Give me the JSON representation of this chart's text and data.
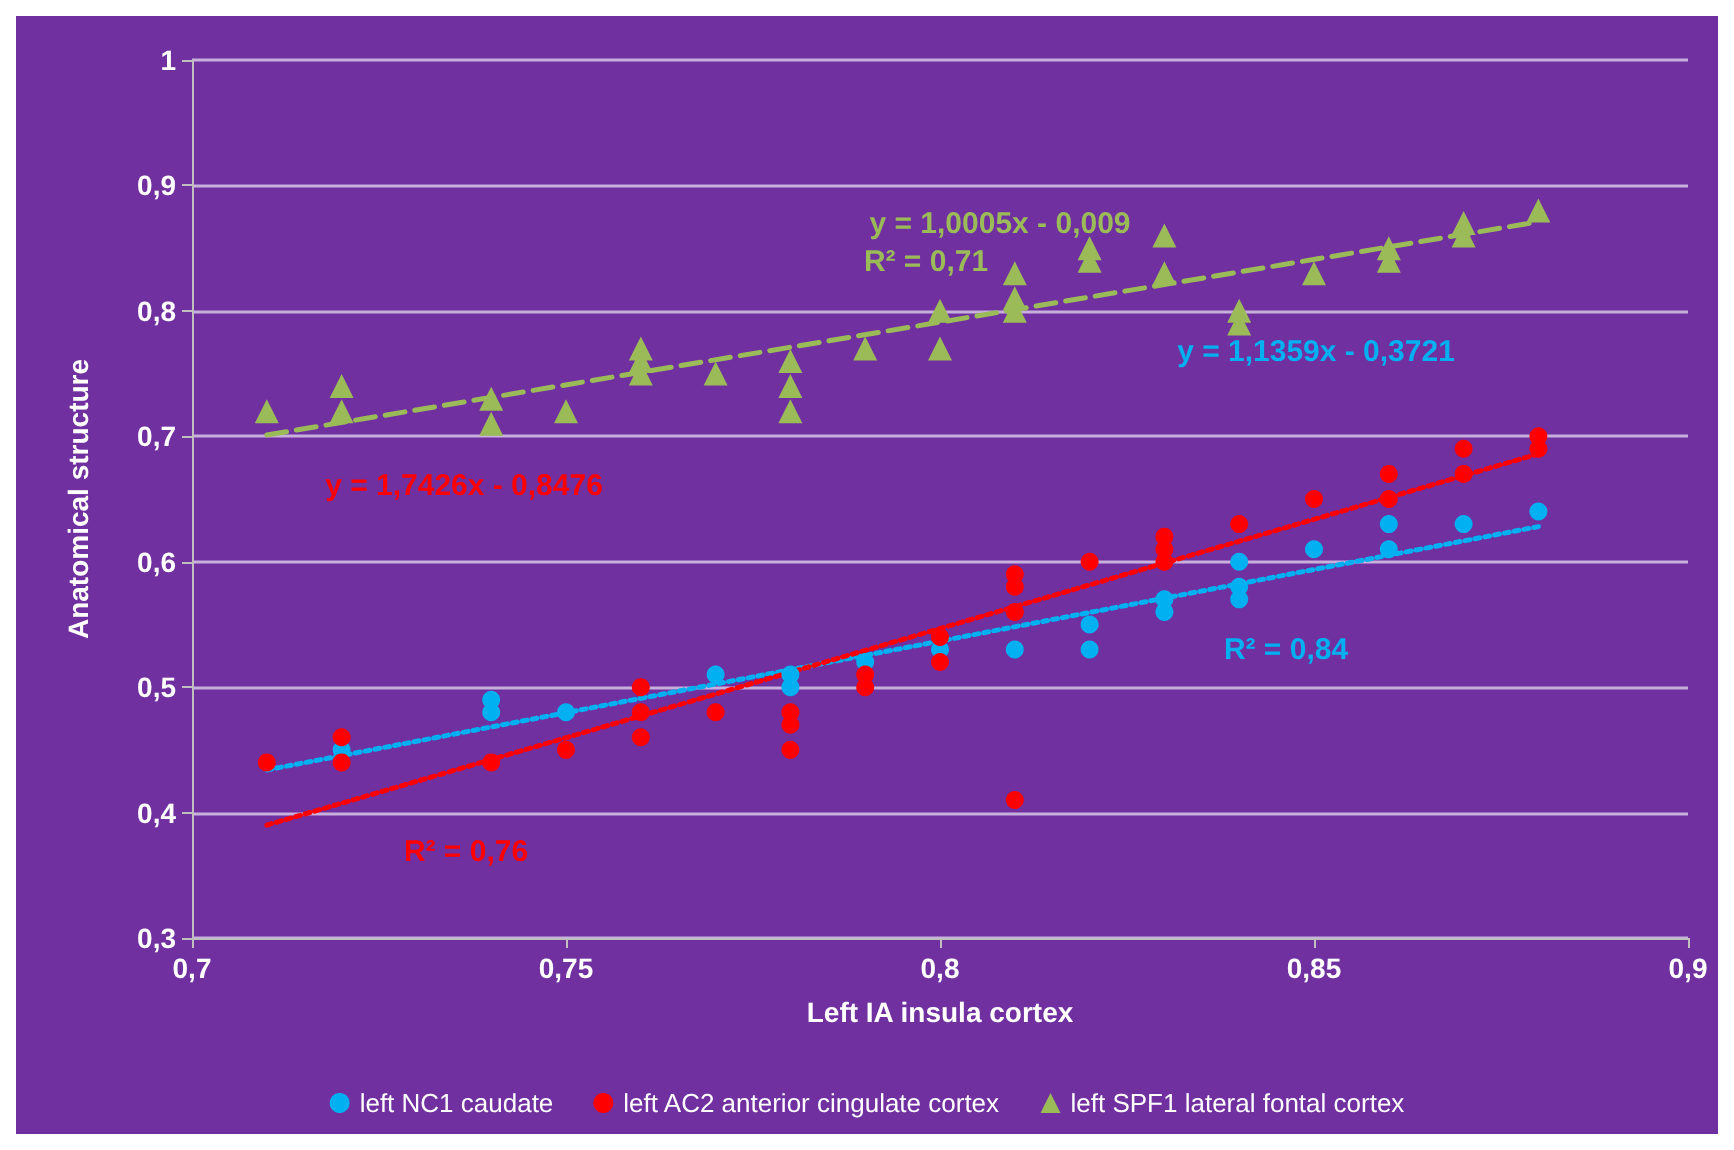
{
  "chart_data": {
    "type": "scatter",
    "xlabel": "Left IA insula cortex",
    "ylabel": "Anatomical structure",
    "xlim": [
      0.7,
      0.9
    ],
    "ylim": [
      0.3,
      1
    ],
    "xticks": [
      {
        "value": 0.7,
        "label": "0,7"
      },
      {
        "value": 0.75,
        "label": "0,75"
      },
      {
        "value": 0.8,
        "label": "0,8"
      },
      {
        "value": 0.85,
        "label": "0,85"
      },
      {
        "value": 0.9,
        "label": "0,9"
      }
    ],
    "yticks": [
      {
        "value": 0.3,
        "label": "0,3"
      },
      {
        "value": 0.4,
        "label": "0,4"
      },
      {
        "value": 0.5,
        "label": "0,5"
      },
      {
        "value": 0.6,
        "label": "0,6"
      },
      {
        "value": 0.7,
        "label": "0,7"
      },
      {
        "value": 0.8,
        "label": "0,8"
      },
      {
        "value": 0.9,
        "label": "0,9"
      },
      {
        "value": 1,
        "label": "1"
      }
    ],
    "grid": "y",
    "legend": "bottom",
    "series": [
      {
        "name": "left NC1 caudate",
        "color": "#00b0f0",
        "marker": "circle",
        "x": [
          0.72,
          0.74,
          0.74,
          0.75,
          0.77,
          0.78,
          0.78,
          0.79,
          0.8,
          0.81,
          0.82,
          0.82,
          0.83,
          0.83,
          0.84,
          0.84,
          0.84,
          0.85,
          0.86,
          0.86,
          0.87,
          0.88
        ],
        "values": [
          0.45,
          0.49,
          0.48,
          0.48,
          0.51,
          0.5,
          0.51,
          0.52,
          0.53,
          0.53,
          0.55,
          0.53,
          0.57,
          0.56,
          0.6,
          0.58,
          0.57,
          0.61,
          0.63,
          0.61,
          0.63,
          0.64
        ]
      },
      {
        "name": "left AC2 anterior cingulate cortex",
        "color": "#ff0000",
        "marker": "circle",
        "x": [
          0.71,
          0.72,
          0.72,
          0.74,
          0.75,
          0.76,
          0.76,
          0.76,
          0.77,
          0.78,
          0.78,
          0.78,
          0.79,
          0.79,
          0.8,
          0.8,
          0.81,
          0.81,
          0.81,
          0.81,
          0.82,
          0.83,
          0.83,
          0.83,
          0.84,
          0.85,
          0.86,
          0.86,
          0.87,
          0.87,
          0.88,
          0.88
        ],
        "values": [
          0.44,
          0.46,
          0.44,
          0.44,
          0.45,
          0.5,
          0.48,
          0.46,
          0.48,
          0.48,
          0.47,
          0.45,
          0.51,
          0.5,
          0.54,
          0.52,
          0.59,
          0.58,
          0.56,
          0.41,
          0.6,
          0.62,
          0.61,
          0.6,
          0.63,
          0.65,
          0.67,
          0.65,
          0.69,
          0.67,
          0.7,
          0.69
        ]
      },
      {
        "name": "left SPF1 lateral fontal cortex",
        "color": "#9bbb59",
        "marker": "triangle",
        "x": [
          0.71,
          0.72,
          0.72,
          0.74,
          0.74,
          0.75,
          0.76,
          0.76,
          0.76,
          0.77,
          0.78,
          0.78,
          0.78,
          0.79,
          0.8,
          0.8,
          0.81,
          0.81,
          0.81,
          0.82,
          0.82,
          0.83,
          0.83,
          0.84,
          0.84,
          0.85,
          0.86,
          0.86,
          0.87,
          0.87,
          0.88
        ],
        "values": [
          0.72,
          0.74,
          0.72,
          0.73,
          0.71,
          0.72,
          0.77,
          0.76,
          0.75,
          0.75,
          0.76,
          0.74,
          0.72,
          0.77,
          0.8,
          0.77,
          0.83,
          0.81,
          0.8,
          0.85,
          0.84,
          0.86,
          0.83,
          0.8,
          0.79,
          0.83,
          0.85,
          0.84,
          0.87,
          0.86,
          0.88
        ]
      },
      {
        "type": "line",
        "color": "#9bbb59",
        "line_style": "dashed",
        "marker": "none",
        "x": [
          0.71,
          0.88
        ],
        "values": [
          0.701,
          0.871
        ]
      },
      {
        "type": "line",
        "color": "#00b0f0",
        "line_style": "dotted",
        "marker": "none",
        "x": [
          0.71,
          0.88
        ],
        "values": [
          0.434,
          0.628
        ]
      },
      {
        "type": "line",
        "color": "#ff0000",
        "line_style": "dotted",
        "marker": "none",
        "x": [
          0.71,
          0.88
        ],
        "values": [
          0.39,
          0.686
        ]
      }
    ],
    "annotations": [
      "y = 1,0005x - 0,009",
      "R² = 0,71",
      "y = 1,1359x - 0,3721",
      "R² = 0,84",
      "y = 1,7426x - 0,8476",
      "R² = 0,76"
    ]
  }
}
